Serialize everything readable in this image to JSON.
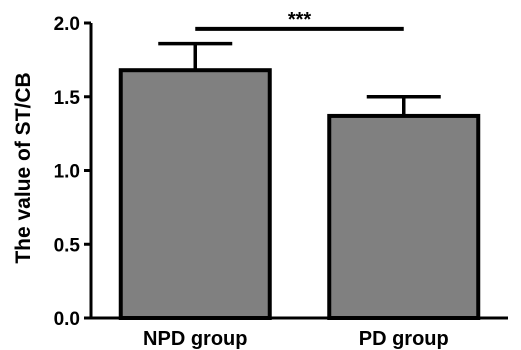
{
  "chart_data": {
    "type": "bar",
    "title": "",
    "xlabel": "",
    "ylabel": "The value of ST/CB",
    "categories": [
      "NPD group",
      "PD group"
    ],
    "values": [
      1.68,
      1.37
    ],
    "error_upper": [
      1.86,
      1.5
    ],
    "ylim": [
      0.0,
      2.0
    ],
    "yticks": [
      0.0,
      0.5,
      1.0,
      1.5,
      2.0
    ],
    "ytick_labels": [
      "0.0",
      "0.5",
      "1.0",
      "1.5",
      "2.0"
    ],
    "bar_color": "#808080",
    "grid": false,
    "legend": "none",
    "annotations": [
      {
        "text": "***",
        "between": [
          "NPD group",
          "PD group"
        ],
        "y": 1.96
      }
    ]
  }
}
